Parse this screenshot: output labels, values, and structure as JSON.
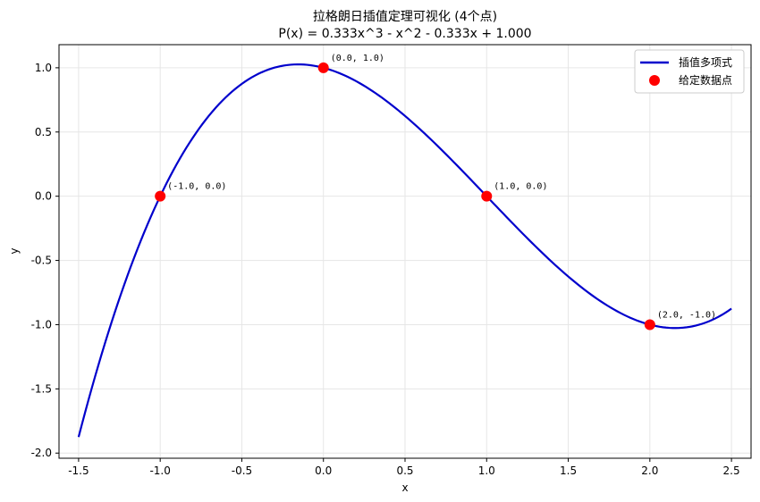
{
  "chart_data": {
    "type": "line",
    "title": "拉格朗日插值定理可视化 (4个点)",
    "subtitle": "P(x) = 0.333x^3 - x^2 - 0.333x + 1.000",
    "xlabel": "x",
    "ylabel": "y",
    "xlim": [
      -1.62,
      2.62
    ],
    "ylim": [
      -2.04,
      1.18
    ],
    "xticks": [
      "-1.5",
      "-1.0",
      "-0.5",
      "0.0",
      "0.5",
      "1.0",
      "1.5",
      "2.0",
      "2.5"
    ],
    "yticks": [
      "-2.0",
      "-1.5",
      "-1.0",
      "-0.5",
      "0.0",
      "0.5",
      "1.0"
    ],
    "grid": true,
    "legend_position": "top-right",
    "series": [
      {
        "name": "插值多项式",
        "kind": "line",
        "color": "#0000cc",
        "coefficients": [
          0.3333333,
          -1.0,
          -0.3333333,
          1.0
        ],
        "x_range": [
          -1.5,
          2.5
        ]
      },
      {
        "name": "给定数据点",
        "kind": "scatter",
        "color": "#ff0000",
        "x": [
          -1.0,
          0.0,
          1.0,
          2.0
        ],
        "y": [
          0.0,
          1.0,
          0.0,
          -1.0
        ],
        "labels": [
          "(-1.0, 0.0)",
          "(0.0, 1.0)",
          "(1.0, 0.0)",
          "(2.0, -1.0)"
        ]
      }
    ]
  }
}
